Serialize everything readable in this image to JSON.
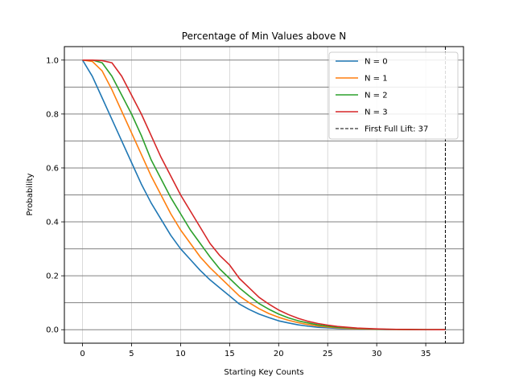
{
  "chart_data": {
    "type": "line",
    "title": "Percentage of Min Values above N",
    "xlabel": "Starting Key Counts",
    "ylabel": "Probability",
    "xlim": [
      -1.85,
      38.85
    ],
    "ylim": [
      -0.05,
      1.05
    ],
    "xticks": [
      0,
      5,
      10,
      15,
      20,
      25,
      30,
      35
    ],
    "yticks": [
      0.0,
      0.2,
      0.4,
      0.6,
      0.8,
      1.0
    ],
    "ytick_labels": [
      "0.0",
      "0.2",
      "0.4",
      "0.6",
      "0.8",
      "1.0"
    ],
    "y_grid_lines": [
      0.0,
      0.1,
      0.2,
      0.3,
      0.4,
      0.5,
      0.6,
      0.7,
      0.8,
      0.9,
      1.0
    ],
    "grid": true,
    "legend_position": "top-right",
    "x": [
      0,
      1,
      2,
      3,
      4,
      5,
      6,
      7,
      8,
      9,
      10,
      11,
      12,
      13,
      14,
      15,
      16,
      17,
      18,
      19,
      20,
      21,
      22,
      23,
      24,
      25,
      26,
      27,
      28,
      29,
      30,
      31,
      32,
      33,
      34,
      35,
      36,
      37
    ],
    "series": [
      {
        "name": "N = 0",
        "color": "#1f77b4",
        "values": [
          1.0,
          0.94,
          0.86,
          0.78,
          0.7,
          0.62,
          0.54,
          0.47,
          0.41,
          0.35,
          0.3,
          0.26,
          0.22,
          0.185,
          0.155,
          0.125,
          0.095,
          0.075,
          0.058,
          0.045,
          0.033,
          0.025,
          0.018,
          0.013,
          0.009,
          0.007,
          0.005,
          0.004,
          0.003,
          0.002,
          0.0015,
          0.001,
          0.0008,
          0.0005,
          0.0003,
          0.0002,
          0.0001,
          0.0
        ]
      },
      {
        "name": "N = 1",
        "color": "#ff7f0e",
        "values": [
          1.0,
          0.995,
          0.96,
          0.89,
          0.81,
          0.73,
          0.65,
          0.57,
          0.5,
          0.43,
          0.37,
          0.32,
          0.27,
          0.23,
          0.195,
          0.16,
          0.125,
          0.1,
          0.078,
          0.06,
          0.046,
          0.035,
          0.026,
          0.019,
          0.014,
          0.01,
          0.007,
          0.005,
          0.0035,
          0.0025,
          0.0018,
          0.0012,
          0.0008,
          0.0005,
          0.0003,
          0.0002,
          0.0001,
          0.0
        ]
      },
      {
        "name": "N = 2",
        "color": "#2ca02c",
        "values": [
          1.0,
          1.0,
          0.99,
          0.94,
          0.87,
          0.8,
          0.72,
          0.63,
          0.56,
          0.49,
          0.43,
          0.37,
          0.32,
          0.27,
          0.225,
          0.19,
          0.155,
          0.125,
          0.097,
          0.076,
          0.058,
          0.044,
          0.033,
          0.025,
          0.018,
          0.013,
          0.009,
          0.007,
          0.005,
          0.0035,
          0.0025,
          0.0017,
          0.0011,
          0.0007,
          0.0004,
          0.0002,
          0.0001,
          0.0
        ]
      },
      {
        "name": "N = 3",
        "color": "#d62728",
        "values": [
          1.0,
          1.0,
          0.998,
          0.99,
          0.94,
          0.87,
          0.8,
          0.72,
          0.64,
          0.57,
          0.5,
          0.44,
          0.38,
          0.32,
          0.275,
          0.24,
          0.19,
          0.155,
          0.12,
          0.095,
          0.073,
          0.056,
          0.042,
          0.031,
          0.023,
          0.017,
          0.012,
          0.009,
          0.006,
          0.0045,
          0.003,
          0.002,
          0.0014,
          0.0009,
          0.0005,
          0.0003,
          0.0001,
          0.0
        ]
      }
    ],
    "vline": {
      "x": 37,
      "label": "First Full Lift: 37",
      "color": "#000000"
    }
  }
}
